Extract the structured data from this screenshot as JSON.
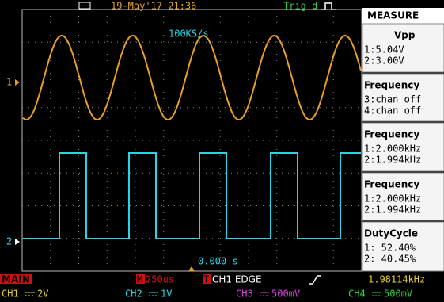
{
  "header": {
    "date": "19-May'17 21:36",
    "trigger": "Trig'd"
  },
  "screen": {
    "sample_rate": "100KS/s",
    "ch1_marker": "1",
    "ch2_marker": "2",
    "trigger_time": "0.000 s"
  },
  "measure": {
    "title": "MEASURE",
    "panels": [
      {
        "label": "Vpp",
        "lines": [
          "1:5.04V",
          "2:3.00V"
        ]
      },
      {
        "label": "Frequency",
        "lines": [
          "3:chan off",
          "4:chan off"
        ]
      },
      {
        "label": "Frequency",
        "lines": [
          "1:2.000kHz",
          "2:1.994kHz"
        ]
      },
      {
        "label": "Frequency",
        "lines": [
          "1:2.000kHz",
          "2:1.994kHz"
        ]
      },
      {
        "label": "DutyCycle",
        "lines": [
          "1: 52.40%",
          "2: 40.45%"
        ]
      }
    ]
  },
  "status": {
    "mode": "MAIN",
    "timebase_icon": "M",
    "timebase": "250us",
    "trigger_icon": "T",
    "trigger_source": "CH1 EDGE",
    "trigger_freq": "1.98114kHz"
  },
  "channels": [
    {
      "name": "CH1",
      "scale": "2V"
    },
    {
      "name": "CH2",
      "scale": "1V"
    },
    {
      "name": "CH3",
      "scale": "500mV"
    },
    {
      "name": "CH4",
      "scale": "500mV"
    }
  ]
}
